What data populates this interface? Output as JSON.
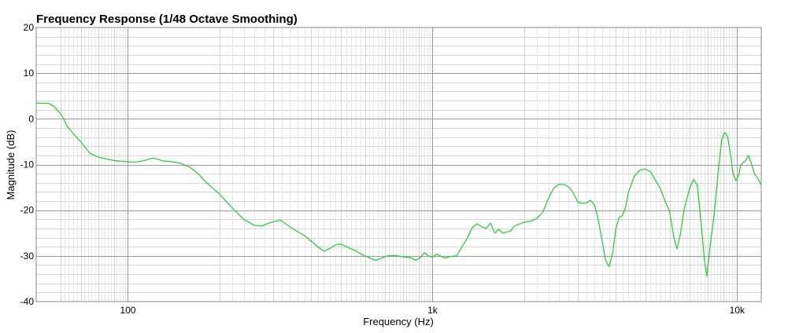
{
  "chart_data": {
    "type": "line",
    "title": "Frequency Response (1/48 Octave Smoothing)",
    "xlabel": "Frequency (Hz)",
    "ylabel": "Magnitude (dB)",
    "x_scale": "log",
    "xlim": [
      50,
      12000
    ],
    "ylim": [
      -40,
      20
    ],
    "x_ticks": [
      {
        "value": 100,
        "label": "100"
      },
      {
        "value": 1000,
        "label": "1k"
      },
      {
        "value": 10000,
        "label": "10k"
      }
    ],
    "y_ticks": [
      {
        "value": 20,
        "label": "20"
      },
      {
        "value": 10,
        "label": "10"
      },
      {
        "value": 0,
        "label": "0"
      },
      {
        "value": -10,
        "label": "-10"
      },
      {
        "value": -20,
        "label": "-20"
      },
      {
        "value": -30,
        "label": "-30"
      },
      {
        "value": -40,
        "label": "-40"
      }
    ],
    "grid": true,
    "colors": {
      "line": "#2ecc40",
      "grid_minor": "#d4d4d4",
      "grid_major": "#999999",
      "axis": "#888888"
    },
    "series": [
      {
        "points": [
          [
            50,
            3.5
          ],
          [
            52,
            3.4
          ],
          [
            55,
            3.4
          ],
          [
            57,
            2.8
          ],
          [
            59,
            1.8
          ],
          [
            61,
            0.5
          ],
          [
            63,
            -1.5
          ],
          [
            66,
            -3.2
          ],
          [
            70,
            -5.0
          ],
          [
            75,
            -7.5
          ],
          [
            80,
            -8.4
          ],
          [
            85,
            -8.8
          ],
          [
            90,
            -9.1
          ],
          [
            95,
            -9.3
          ],
          [
            100,
            -9.4
          ],
          [
            105,
            -9.5
          ],
          [
            110,
            -9.3
          ],
          [
            115,
            -9.0
          ],
          [
            120,
            -8.6
          ],
          [
            125,
            -8.8
          ],
          [
            130,
            -9.2
          ],
          [
            140,
            -9.4
          ],
          [
            150,
            -9.8
          ],
          [
            160,
            -10.6
          ],
          [
            170,
            -12.0
          ],
          [
            180,
            -13.8
          ],
          [
            200,
            -16.5
          ],
          [
            220,
            -19.5
          ],
          [
            240,
            -22.0
          ],
          [
            260,
            -23.3
          ],
          [
            275,
            -23.5
          ],
          [
            290,
            -22.8
          ],
          [
            305,
            -22.4
          ],
          [
            318,
            -22.2
          ],
          [
            330,
            -23.0
          ],
          [
            350,
            -24.2
          ],
          [
            380,
            -25.5
          ],
          [
            400,
            -26.8
          ],
          [
            420,
            -28.0
          ],
          [
            440,
            -29.0
          ],
          [
            460,
            -28.4
          ],
          [
            480,
            -27.6
          ],
          [
            500,
            -27.4
          ],
          [
            530,
            -28.2
          ],
          [
            560,
            -28.9
          ],
          [
            590,
            -29.8
          ],
          [
            620,
            -30.4
          ],
          [
            650,
            -31.0
          ],
          [
            680,
            -30.5
          ],
          [
            710,
            -30.0
          ],
          [
            750,
            -29.9
          ],
          [
            800,
            -30.2
          ],
          [
            850,
            -30.4
          ],
          [
            880,
            -31.0
          ],
          [
            910,
            -30.4
          ],
          [
            940,
            -29.3
          ],
          [
            970,
            -30.0
          ],
          [
            1000,
            -30.3
          ],
          [
            1030,
            -29.6
          ],
          [
            1060,
            -30.0
          ],
          [
            1100,
            -30.5
          ],
          [
            1150,
            -30.1
          ],
          [
            1200,
            -30.0
          ],
          [
            1250,
            -28.0
          ],
          [
            1300,
            -26.2
          ],
          [
            1350,
            -23.8
          ],
          [
            1400,
            -23.0
          ],
          [
            1450,
            -23.6
          ],
          [
            1500,
            -24.0
          ],
          [
            1550,
            -22.8
          ],
          [
            1600,
            -25.0
          ],
          [
            1650,
            -24.2
          ],
          [
            1700,
            -25.0
          ],
          [
            1800,
            -24.6
          ],
          [
            1850,
            -23.6
          ],
          [
            1900,
            -23.2
          ],
          [
            2000,
            -22.6
          ],
          [
            2100,
            -22.4
          ],
          [
            2200,
            -21.8
          ],
          [
            2300,
            -20.5
          ],
          [
            2400,
            -17.5
          ],
          [
            2500,
            -15.2
          ],
          [
            2600,
            -14.3
          ],
          [
            2700,
            -14.4
          ],
          [
            2800,
            -14.9
          ],
          [
            2900,
            -16.2
          ],
          [
            3000,
            -18.2
          ],
          [
            3100,
            -18.5
          ],
          [
            3200,
            -18.4
          ],
          [
            3300,
            -17.8
          ],
          [
            3400,
            -18.8
          ],
          [
            3500,
            -22.0
          ],
          [
            3600,
            -26.5
          ],
          [
            3700,
            -31.0
          ],
          [
            3800,
            -32.3
          ],
          [
            3900,
            -29.5
          ],
          [
            4000,
            -24.0
          ],
          [
            4100,
            -21.6
          ],
          [
            4200,
            -21.2
          ],
          [
            4300,
            -19.5
          ],
          [
            4400,
            -16.0
          ],
          [
            4600,
            -12.5
          ],
          [
            4800,
            -11.2
          ],
          [
            5000,
            -11.0
          ],
          [
            5200,
            -11.6
          ],
          [
            5400,
            -13.5
          ],
          [
            5600,
            -15.3
          ],
          [
            5800,
            -18.0
          ],
          [
            6000,
            -20.2
          ],
          [
            6200,
            -26.0
          ],
          [
            6350,
            -28.5
          ],
          [
            6500,
            -25.5
          ],
          [
            6700,
            -19.8
          ],
          [
            7000,
            -15.0
          ],
          [
            7200,
            -13.3
          ],
          [
            7400,
            -14.5
          ],
          [
            7600,
            -22.0
          ],
          [
            7800,
            -30.5
          ],
          [
            7950,
            -34.5
          ],
          [
            8150,
            -28.0
          ],
          [
            8400,
            -21.0
          ],
          [
            8700,
            -10.5
          ],
          [
            8900,
            -4.5
          ],
          [
            9100,
            -3.0
          ],
          [
            9300,
            -3.8
          ],
          [
            9500,
            -7.5
          ],
          [
            9700,
            -12.0
          ],
          [
            9900,
            -13.5
          ],
          [
            10100,
            -12.5
          ],
          [
            10300,
            -10.0
          ],
          [
            10500,
            -9.5
          ],
          [
            10700,
            -9.0
          ],
          [
            10900,
            -8.0
          ],
          [
            11100,
            -9.5
          ],
          [
            11400,
            -12.0
          ],
          [
            11700,
            -13.0
          ],
          [
            12000,
            -14.5
          ]
        ]
      }
    ]
  }
}
